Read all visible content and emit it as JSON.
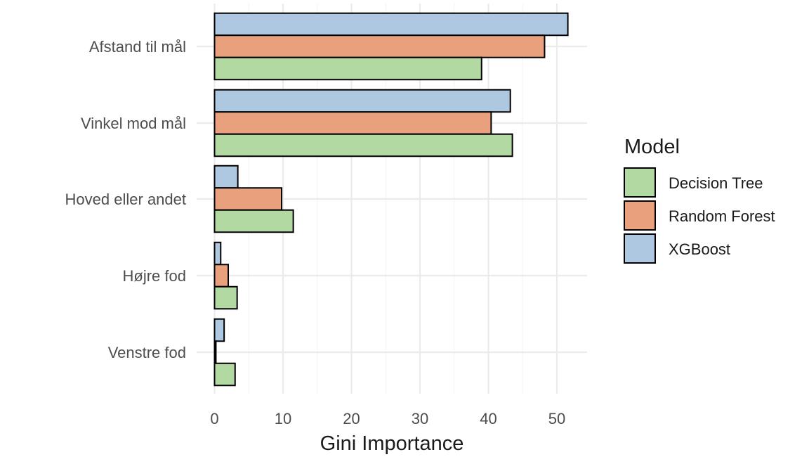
{
  "chart_data": {
    "type": "bar",
    "orientation": "horizontal",
    "title": "",
    "xlabel": "Gini Importance",
    "ylabel": "",
    "xlim": [
      0,
      54
    ],
    "xticks": [
      0,
      10,
      20,
      30,
      40,
      50
    ],
    "categories": [
      "Afstand til mål",
      "Vinkel mod mål",
      "Hoved eller andet",
      "Højre fod",
      "Venstre fod"
    ],
    "series": [
      {
        "name": "Decision Tree",
        "color": "#b3d9a3",
        "values": [
          39.0,
          43.5,
          11.5,
          3.3,
          3.0
        ]
      },
      {
        "name": "Random Forest",
        "color": "#e9a07c",
        "values": [
          48.2,
          40.4,
          9.8,
          2.0,
          0.2
        ]
      },
      {
        "name": "XGBoost",
        "color": "#adc8e0",
        "values": [
          51.6,
          43.2,
          3.4,
          0.9,
          1.4
        ]
      }
    ],
    "grid": true,
    "legend": {
      "title": "Model",
      "position": "right"
    }
  }
}
